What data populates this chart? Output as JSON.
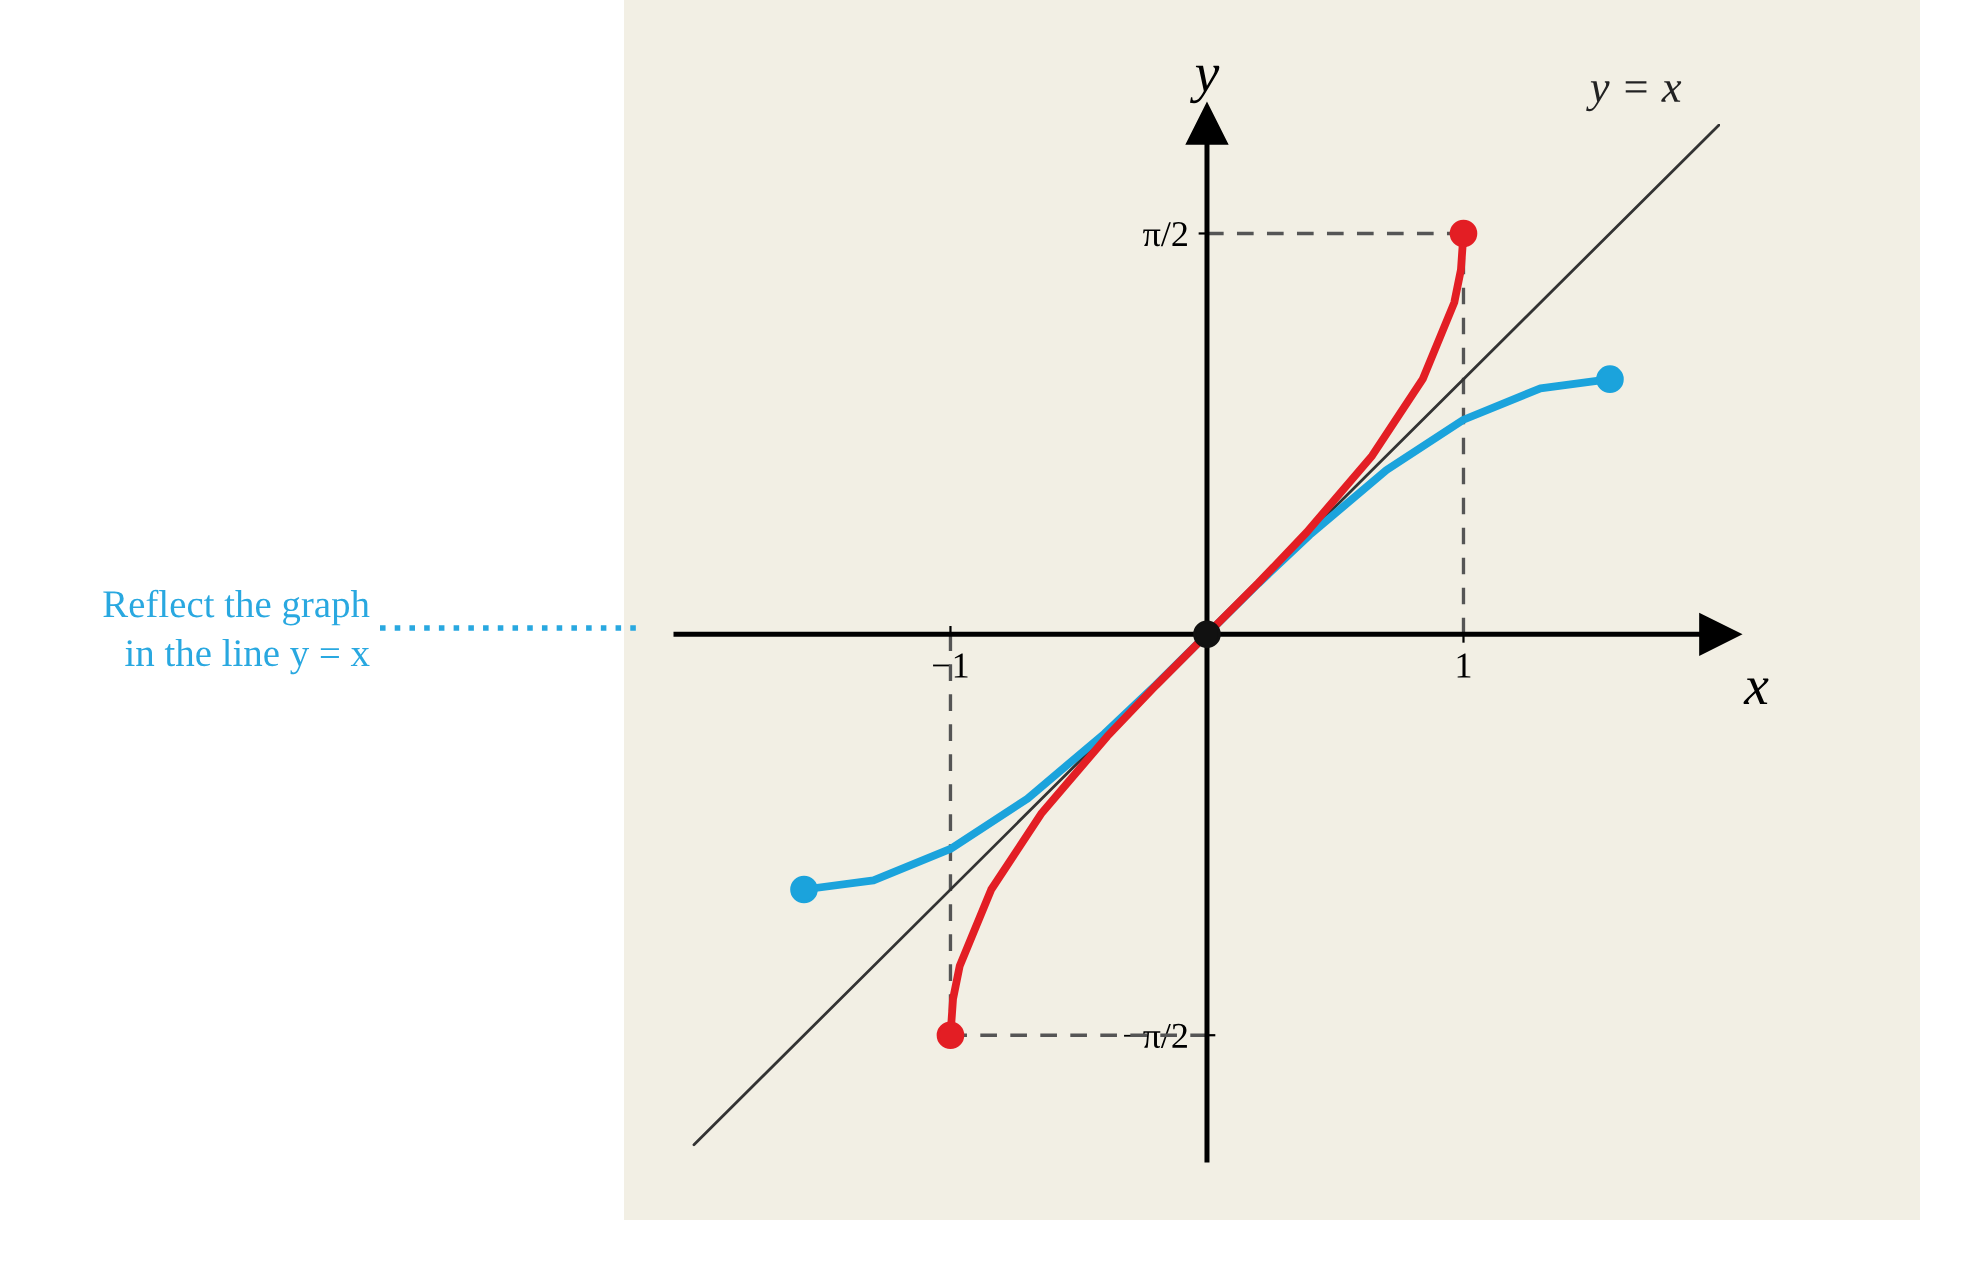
{
  "chart_data": {
    "type": "line",
    "xlabel": "x",
    "ylabel": "y",
    "annotations": [
      "Reflect the graph\nin the line y = x"
    ],
    "xlim": [
      -2.07,
      2.0
    ],
    "ylim": [
      -2.06,
      2.0
    ],
    "xticks": [
      {
        "value": -1,
        "label": "−1"
      },
      {
        "value": 1,
        "label": "1"
      }
    ],
    "yticks": [
      {
        "value": -1.571,
        "label": "−π/2"
      },
      {
        "value": 1.571,
        "label": "π/2"
      }
    ],
    "grid": false,
    "ref_lines": [
      {
        "axis": "x",
        "value": 1,
        "label": null,
        "color": "#555555",
        "line_style": "dashed"
      },
      {
        "axis": "x",
        "value": -1,
        "label": null,
        "color": "#555555",
        "line_style": "dashed"
      },
      {
        "axis": "y",
        "value": 1.571,
        "label": null,
        "color": "#555555",
        "line_style": "dashed"
      },
      {
        "axis": "y",
        "value": -1.571,
        "label": null,
        "color": "#555555",
        "line_style": "dashed"
      }
    ],
    "series": [
      {
        "name": "y = x",
        "type": "line",
        "color": "#333333",
        "x": [
          -2.0,
          2.0
        ],
        "values": [
          -2.0,
          2.0
        ]
      },
      {
        "type": "line",
        "color": "#1ba3dc",
        "x": [
          -1.571,
          -1.3,
          -1.0,
          -0.7,
          -0.4,
          -0.2,
          0,
          0.2,
          0.4,
          0.7,
          1.0,
          1.3,
          1.571
        ],
        "values": [
          -1.0,
          -0.964,
          -0.841,
          -0.644,
          -0.389,
          -0.199,
          0,
          0.199,
          0.389,
          0.644,
          0.841,
          0.964,
          1.0
        ]
      },
      {
        "type": "line",
        "color": "#e31e24",
        "x": [
          -1.0,
          -0.99,
          -0.964,
          -0.841,
          -0.644,
          -0.389,
          -0.199,
          0,
          0.199,
          0.389,
          0.644,
          0.841,
          0.964,
          0.99,
          1.0
        ],
        "values": [
          -1.571,
          -1.429,
          -1.3,
          -1.0,
          -0.7,
          -0.4,
          -0.2,
          0,
          0.2,
          0.4,
          0.7,
          1.0,
          1.3,
          1.429,
          1.571
        ]
      },
      {
        "type": "scatter",
        "color": "#1ba3dc",
        "x": [
          -1.571,
          1.571
        ],
        "values": [
          -1.0,
          1.0
        ]
      },
      {
        "type": "scatter",
        "color": "#e31e24",
        "x": [
          -1.0,
          1.0
        ],
        "values": [
          -1.571,
          1.571
        ]
      },
      {
        "type": "scatter",
        "color": "#111111",
        "x": [
          0
        ],
        "values": [
          0
        ]
      }
    ]
  }
}
